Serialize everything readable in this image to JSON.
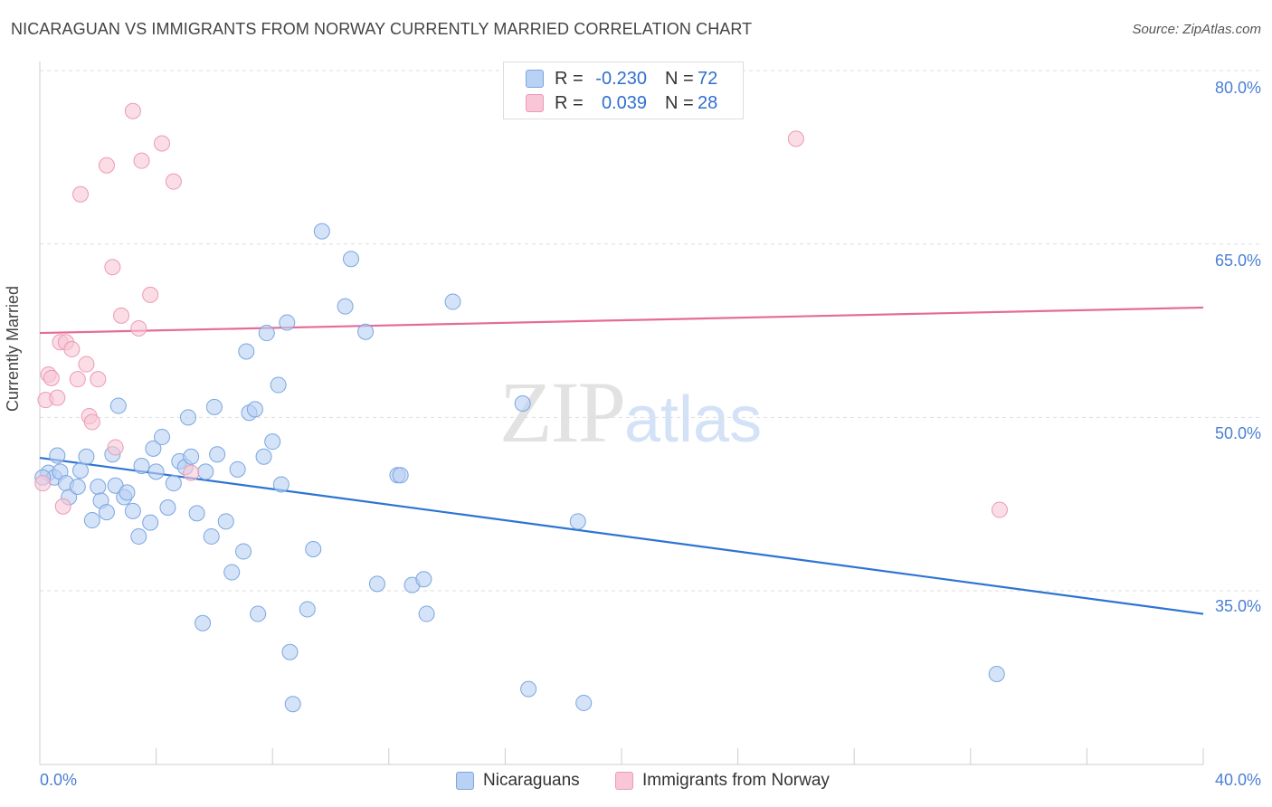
{
  "title": "NICARAGUAN VS IMMIGRANTS FROM NORWAY CURRENTLY MARRIED CORRELATION CHART",
  "source": "Source: ZipAtlas.com",
  "watermark": {
    "zip": "ZIP",
    "atlas": "atlas"
  },
  "legend": {
    "series1": {
      "r_label": "R =",
      "r_value": "-0.230",
      "n_label": "N =",
      "n_value": "72"
    },
    "series2": {
      "r_label": "R =",
      "r_value": "0.039",
      "n_label": "N =",
      "n_value": "28"
    }
  },
  "bottom_legend": {
    "series1": "Nicaraguans",
    "series2": "Immigrants from Norway"
  },
  "colors": {
    "blue_fill": "#b9d1f3",
    "blue_stroke": "#7aa6e0",
    "blue_line": "#2e74d2",
    "pink_fill": "#f8c6d6",
    "pink_stroke": "#ec9ab6",
    "pink_line": "#e56b98",
    "grid": "#dddddd",
    "tick_text": "#4a7fd4"
  },
  "chart_data": {
    "type": "scatter",
    "title": "NICARAGUAN VS IMMIGRANTS FROM NORWAY CURRENTLY MARRIED CORRELATION CHART",
    "xlabel": "",
    "ylabel": "Currently Married",
    "xlim": [
      0,
      40
    ],
    "ylim": [
      20,
      83
    ],
    "y_ticks": [
      35.0,
      50.0,
      65.0,
      80.0
    ],
    "y_tick_labels": [
      "35.0%",
      "50.0%",
      "65.0%",
      "80.0%"
    ],
    "x_tick_labels": [
      "0.0%",
      "40.0%"
    ],
    "grid": true,
    "legend_position": "top-center",
    "series": [
      {
        "name": "Nicaraguans",
        "trend": {
          "x": [
            0,
            40
          ],
          "y": [
            46.5,
            33.0
          ]
        },
        "points": [
          [
            0.3,
            45.2
          ],
          [
            0.5,
            44.8
          ],
          [
            0.6,
            46.7
          ],
          [
            0.7,
            45.3
          ],
          [
            0.9,
            44.3
          ],
          [
            1.0,
            43.1
          ],
          [
            1.3,
            44.0
          ],
          [
            1.4,
            45.4
          ],
          [
            1.6,
            46.6
          ],
          [
            1.8,
            41.1
          ],
          [
            2.0,
            44.0
          ],
          [
            2.1,
            42.8
          ],
          [
            2.3,
            41.8
          ],
          [
            2.5,
            46.8
          ],
          [
            2.6,
            44.1
          ],
          [
            2.7,
            51.0
          ],
          [
            2.9,
            43.1
          ],
          [
            3.0,
            43.5
          ],
          [
            3.2,
            41.9
          ],
          [
            3.4,
            39.7
          ],
          [
            3.5,
            45.8
          ],
          [
            3.8,
            40.9
          ],
          [
            3.9,
            47.3
          ],
          [
            4.0,
            45.3
          ],
          [
            4.2,
            48.3
          ],
          [
            4.4,
            42.2
          ],
          [
            4.6,
            44.3
          ],
          [
            4.8,
            46.2
          ],
          [
            5.0,
            45.7
          ],
          [
            5.1,
            50.0
          ],
          [
            5.2,
            46.6
          ],
          [
            5.4,
            41.7
          ],
          [
            5.6,
            32.2
          ],
          [
            5.7,
            45.3
          ],
          [
            5.9,
            39.7
          ],
          [
            6.0,
            50.9
          ],
          [
            6.1,
            46.8
          ],
          [
            6.4,
            41.0
          ],
          [
            6.6,
            36.6
          ],
          [
            6.8,
            45.5
          ],
          [
            7.0,
            38.4
          ],
          [
            7.1,
            55.7
          ],
          [
            7.2,
            50.4
          ],
          [
            7.4,
            50.7
          ],
          [
            7.5,
            33.0
          ],
          [
            7.7,
            46.6
          ],
          [
            7.8,
            57.3
          ],
          [
            8.0,
            47.9
          ],
          [
            8.2,
            52.8
          ],
          [
            8.3,
            44.2
          ],
          [
            8.5,
            58.2
          ],
          [
            8.6,
            29.7
          ],
          [
            8.7,
            25.2
          ],
          [
            9.2,
            33.4
          ],
          [
            9.4,
            38.6
          ],
          [
            9.7,
            66.1
          ],
          [
            10.5,
            59.6
          ],
          [
            10.7,
            63.7
          ],
          [
            11.2,
            57.4
          ],
          [
            11.6,
            35.6
          ],
          [
            12.3,
            45.0
          ],
          [
            12.4,
            45.0
          ],
          [
            12.8,
            35.5
          ],
          [
            13.2,
            36.0
          ],
          [
            13.3,
            33.0
          ],
          [
            14.2,
            60.0
          ],
          [
            16.6,
            51.2
          ],
          [
            16.8,
            26.5
          ],
          [
            18.5,
            41.0
          ],
          [
            18.7,
            25.3
          ],
          [
            32.9,
            27.8
          ],
          [
            0.1,
            44.8
          ]
        ]
      },
      {
        "name": "Immigrants from Norway",
        "trend": {
          "x": [
            0,
            40
          ],
          "y": [
            57.3,
            59.5
          ]
        },
        "points": [
          [
            0.2,
            51.5
          ],
          [
            0.3,
            53.7
          ],
          [
            0.4,
            53.4
          ],
          [
            0.6,
            51.7
          ],
          [
            0.7,
            56.5
          ],
          [
            0.8,
            42.3
          ],
          [
            0.9,
            56.5
          ],
          [
            1.1,
            55.9
          ],
          [
            1.3,
            53.3
          ],
          [
            1.4,
            69.3
          ],
          [
            1.6,
            54.6
          ],
          [
            1.7,
            50.1
          ],
          [
            1.8,
            49.6
          ],
          [
            2.0,
            53.3
          ],
          [
            2.3,
            71.8
          ],
          [
            2.5,
            63.0
          ],
          [
            2.6,
            47.4
          ],
          [
            2.8,
            58.8
          ],
          [
            3.2,
            76.5
          ],
          [
            3.4,
            57.7
          ],
          [
            3.5,
            72.2
          ],
          [
            3.8,
            60.6
          ],
          [
            4.2,
            73.7
          ],
          [
            4.6,
            70.4
          ],
          [
            5.2,
            45.2
          ],
          [
            26.0,
            74.1
          ],
          [
            33.0,
            42.0
          ],
          [
            0.1,
            44.3
          ]
        ]
      }
    ]
  }
}
